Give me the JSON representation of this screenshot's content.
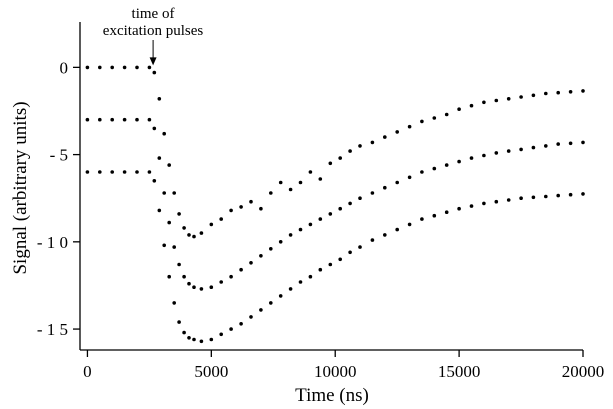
{
  "chart_data": {
    "type": "scatter",
    "xlabel": "Time (ns)",
    "ylabel": "Signal (arbitrary units)",
    "xlim": [
      -300,
      20000
    ],
    "ylim": [
      -16.2,
      2.6
    ],
    "x_ticks": [
      0,
      5000,
      10000,
      15000,
      20000
    ],
    "x_tick_labels": [
      "0",
      "5000",
      "10000",
      "15000",
      "20000"
    ],
    "y_ticks": [
      0,
      -5,
      -10,
      -15
    ],
    "y_tick_labels": [
      "0",
      "- 5",
      "- 1 0",
      "- 1 5"
    ],
    "grid": false,
    "annotation": {
      "lines": [
        "time of",
        "excitation pulses"
      ],
      "arrow_x": 2650,
      "arrow_y": 0
    },
    "series": [
      {
        "x": [
          0,
          500,
          1000,
          1500,
          2000,
          2500,
          2700,
          2900,
          3100,
          3300,
          3500,
          3700,
          3900,
          4100,
          4300,
          4600,
          5000,
          5400,
          5800,
          6200,
          6600,
          7000,
          7400,
          7800,
          8200,
          8600,
          9000,
          9400,
          9800,
          10200,
          10600,
          11000,
          11500,
          12000,
          12500,
          13000,
          13500,
          14000,
          14500,
          15000,
          15500,
          16000,
          16500,
          17000,
          17500,
          18000,
          18500,
          19000,
          19500,
          20000
        ],
        "y": [
          0,
          0,
          0,
          0,
          0,
          0,
          -0.3,
          -1.8,
          -3.8,
          -5.6,
          -7.2,
          -8.4,
          -9.2,
          -9.6,
          -9.7,
          -9.5,
          -9.0,
          -8.7,
          -8.2,
          -8.0,
          -7.7,
          -8.1,
          -7.2,
          -6.6,
          -7.0,
          -6.6,
          -6.0,
          -6.4,
          -5.5,
          -5.2,
          -4.8,
          -4.5,
          -4.3,
          -4.0,
          -3.7,
          -3.4,
          -3.1,
          -2.9,
          -2.7,
          -2.4,
          -2.2,
          -2.0,
          -1.9,
          -1.8,
          -1.7,
          -1.6,
          -1.5,
          -1.45,
          -1.4,
          -1.35
        ]
      },
      {
        "x": [
          0,
          500,
          1000,
          1500,
          2000,
          2500,
          2700,
          2900,
          3100,
          3300,
          3500,
          3700,
          3900,
          4100,
          4300,
          4600,
          5000,
          5400,
          5800,
          6200,
          6600,
          7000,
          7400,
          7800,
          8200,
          8600,
          9000,
          9400,
          9800,
          10200,
          10600,
          11000,
          11500,
          12000,
          12500,
          13000,
          13500,
          14000,
          14500,
          15000,
          15500,
          16000,
          16500,
          17000,
          17500,
          18000,
          18500,
          19000,
          19500,
          20000
        ],
        "y": [
          -3,
          -3,
          -3,
          -3,
          -3,
          -3,
          -3.5,
          -5.2,
          -7.2,
          -8.9,
          -10.3,
          -11.3,
          -12.0,
          -12.4,
          -12.6,
          -12.7,
          -12.6,
          -12.3,
          -12.0,
          -11.6,
          -11.2,
          -10.8,
          -10.4,
          -10.0,
          -9.6,
          -9.3,
          -9.0,
          -8.7,
          -8.4,
          -8.1,
          -7.8,
          -7.5,
          -7.2,
          -6.9,
          -6.6,
          -6.3,
          -6.0,
          -5.8,
          -5.6,
          -5.4,
          -5.2,
          -5.05,
          -4.9,
          -4.8,
          -4.7,
          -4.6,
          -4.5,
          -4.4,
          -4.35,
          -4.3
        ]
      },
      {
        "x": [
          0,
          500,
          1000,
          1500,
          2000,
          2500,
          2700,
          2900,
          3100,
          3300,
          3500,
          3700,
          3900,
          4100,
          4300,
          4600,
          5000,
          5400,
          5800,
          6200,
          6600,
          7000,
          7400,
          7800,
          8200,
          8600,
          9000,
          9400,
          9800,
          10200,
          10600,
          11000,
          11500,
          12000,
          12500,
          13000,
          13500,
          14000,
          14500,
          15000,
          15500,
          16000,
          16500,
          17000,
          17500,
          18000,
          18500,
          19000,
          19500,
          20000
        ],
        "y": [
          -6,
          -6,
          -6,
          -6,
          -6,
          -6,
          -6.5,
          -8.2,
          -10.2,
          -12.0,
          -13.5,
          -14.6,
          -15.2,
          -15.5,
          -15.6,
          -15.7,
          -15.6,
          -15.3,
          -15.0,
          -14.7,
          -14.3,
          -13.9,
          -13.5,
          -13.1,
          -12.7,
          -12.3,
          -12.0,
          -11.6,
          -11.3,
          -11.0,
          -10.6,
          -10.3,
          -9.9,
          -9.6,
          -9.3,
          -9.0,
          -8.7,
          -8.5,
          -8.3,
          -8.1,
          -7.95,
          -7.8,
          -7.7,
          -7.6,
          -7.5,
          -7.45,
          -7.4,
          -7.35,
          -7.3,
          -7.25
        ]
      }
    ]
  }
}
